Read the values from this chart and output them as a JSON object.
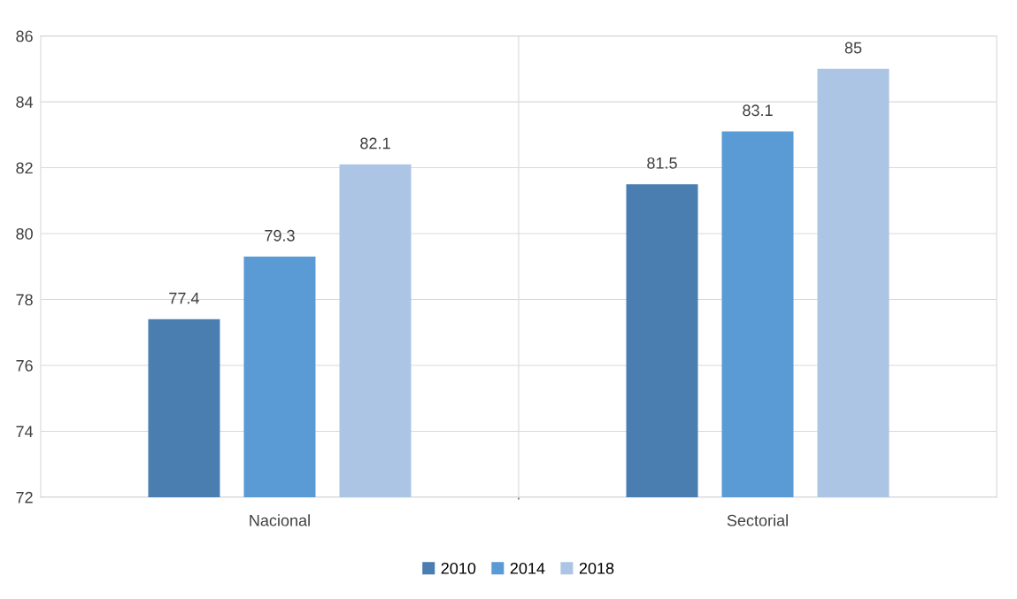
{
  "chart_data": {
    "type": "bar",
    "categories": [
      "Nacional",
      "Sectorial"
    ],
    "series": [
      {
        "name": "2010",
        "color": "#4a7eb0",
        "values": [
          77.4,
          81.5
        ]
      },
      {
        "name": "2014",
        "color": "#5b9bd5",
        "values": [
          79.3,
          83.1
        ]
      },
      {
        "name": "2018",
        "color": "#adc5e5",
        "values": [
          82.1,
          85
        ]
      }
    ],
    "ylim": [
      72,
      86
    ],
    "yticks": [
      72,
      74,
      76,
      78,
      80,
      82,
      84,
      86
    ],
    "grid": true,
    "legend": "bottom",
    "data_labels": true
  }
}
